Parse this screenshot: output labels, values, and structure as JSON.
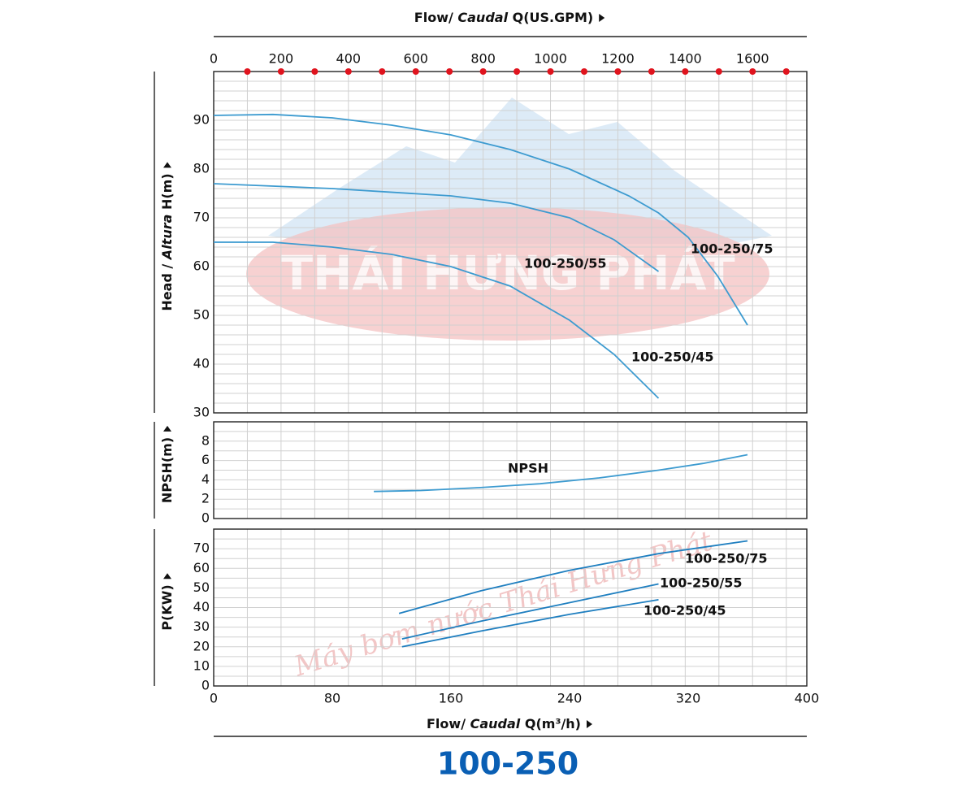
{
  "title": "100-250",
  "watermarks": [
    "THÁI HƯNG PHÁT",
    "Máy bơm nước Thái Hưng Phát"
  ],
  "chart_data": [
    {
      "type": "line",
      "ylabel": [
        "Head / ",
        "Altura",
        " H(m)"
      ],
      "x2label": [
        "Flow/ ",
        "Caudal",
        " Q(US.GPM)"
      ],
      "xlim": [
        0,
        400
      ],
      "x2lim": [
        0,
        1761
      ],
      "x2ticks": [
        0,
        200,
        400,
        600,
        800,
        1000,
        1200,
        1400,
        1600
      ],
      "x2minor": [
        100,
        200,
        300,
        400,
        500,
        600,
        700,
        800,
        900,
        1000,
        1100,
        1200,
        1300,
        1400,
        1500,
        1600,
        1700
      ],
      "x2minor_color": "#e0141e",
      "ylim": [
        30,
        100
      ],
      "yticks": [
        30,
        40,
        50,
        60,
        70,
        80,
        90
      ],
      "yminor": [
        32,
        34,
        36,
        38,
        42,
        44,
        46,
        48,
        52,
        54,
        56,
        58,
        62,
        64,
        66,
        68,
        72,
        74,
        76,
        78,
        82,
        84,
        86,
        88,
        92,
        94,
        96,
        98
      ],
      "grid": true,
      "series": [
        {
          "name": "100-250/75",
          "color": "#3d9bd0",
          "x": [
            0,
            40,
            80,
            120,
            160,
            200,
            240,
            280,
            300,
            320,
            340,
            360
          ],
          "values": [
            91,
            91.2,
            90.5,
            89,
            87,
            84,
            80,
            74.5,
            71,
            66,
            58,
            48
          ]
        },
        {
          "name": "100-250/55",
          "color": "#3d9bd0",
          "x": [
            0,
            80,
            160,
            200,
            240,
            270,
            300
          ],
          "values": [
            77,
            76,
            74.5,
            73,
            70,
            65.5,
            59
          ]
        },
        {
          "name": "100-250/45",
          "color": "#3d9bd0",
          "x": [
            0,
            40,
            80,
            120,
            160,
            200,
            240,
            270,
            300
          ],
          "values": [
            65,
            65,
            64,
            62.5,
            60,
            56,
            49,
            42,
            33
          ]
        }
      ]
    },
    {
      "type": "line",
      "ylabel": [
        "NPSH(m)"
      ],
      "xlim": [
        0,
        400
      ],
      "ylim": [
        0,
        10
      ],
      "yticks": [
        0,
        2,
        4,
        6,
        8
      ],
      "yminor": [
        1,
        3,
        5,
        7,
        9
      ],
      "grid": true,
      "series": [
        {
          "name": "NPSH",
          "color": "#3d9bd0",
          "x": [
            108,
            140,
            180,
            220,
            260,
            300,
            330,
            360
          ],
          "values": [
            2.8,
            2.9,
            3.2,
            3.6,
            4.2,
            5,
            5.7,
            6.6
          ]
        }
      ]
    },
    {
      "type": "line",
      "ylabel": [
        "P(KW)"
      ],
      "xlabel": [
        "Flow/ ",
        "Caudal",
        " Q(m³/h)"
      ],
      "xlim": [
        0,
        400
      ],
      "xticks": [
        0,
        80,
        160,
        240,
        320,
        400
      ],
      "ylim": [
        0,
        80
      ],
      "yticks": [
        0,
        10,
        20,
        30,
        40,
        50,
        60,
        70
      ],
      "yminor": [
        5,
        15,
        25,
        35,
        45,
        55,
        65,
        75
      ],
      "grid": true,
      "series": [
        {
          "name": "100-250/75",
          "color": "#1f7fc0",
          "x": [
            125,
            180,
            240,
            300,
            360
          ],
          "values": [
            37,
            48.5,
            59,
            67.5,
            74
          ]
        },
        {
          "name": "100-250/55",
          "color": "#1f7fc0",
          "x": [
            127,
            180,
            240,
            300
          ],
          "values": [
            24,
            33,
            42.5,
            52
          ]
        },
        {
          "name": "100-250/45",
          "color": "#1f7fc0",
          "x": [
            127,
            180,
            240,
            300
          ],
          "values": [
            20,
            28,
            36.5,
            44
          ]
        }
      ]
    }
  ]
}
